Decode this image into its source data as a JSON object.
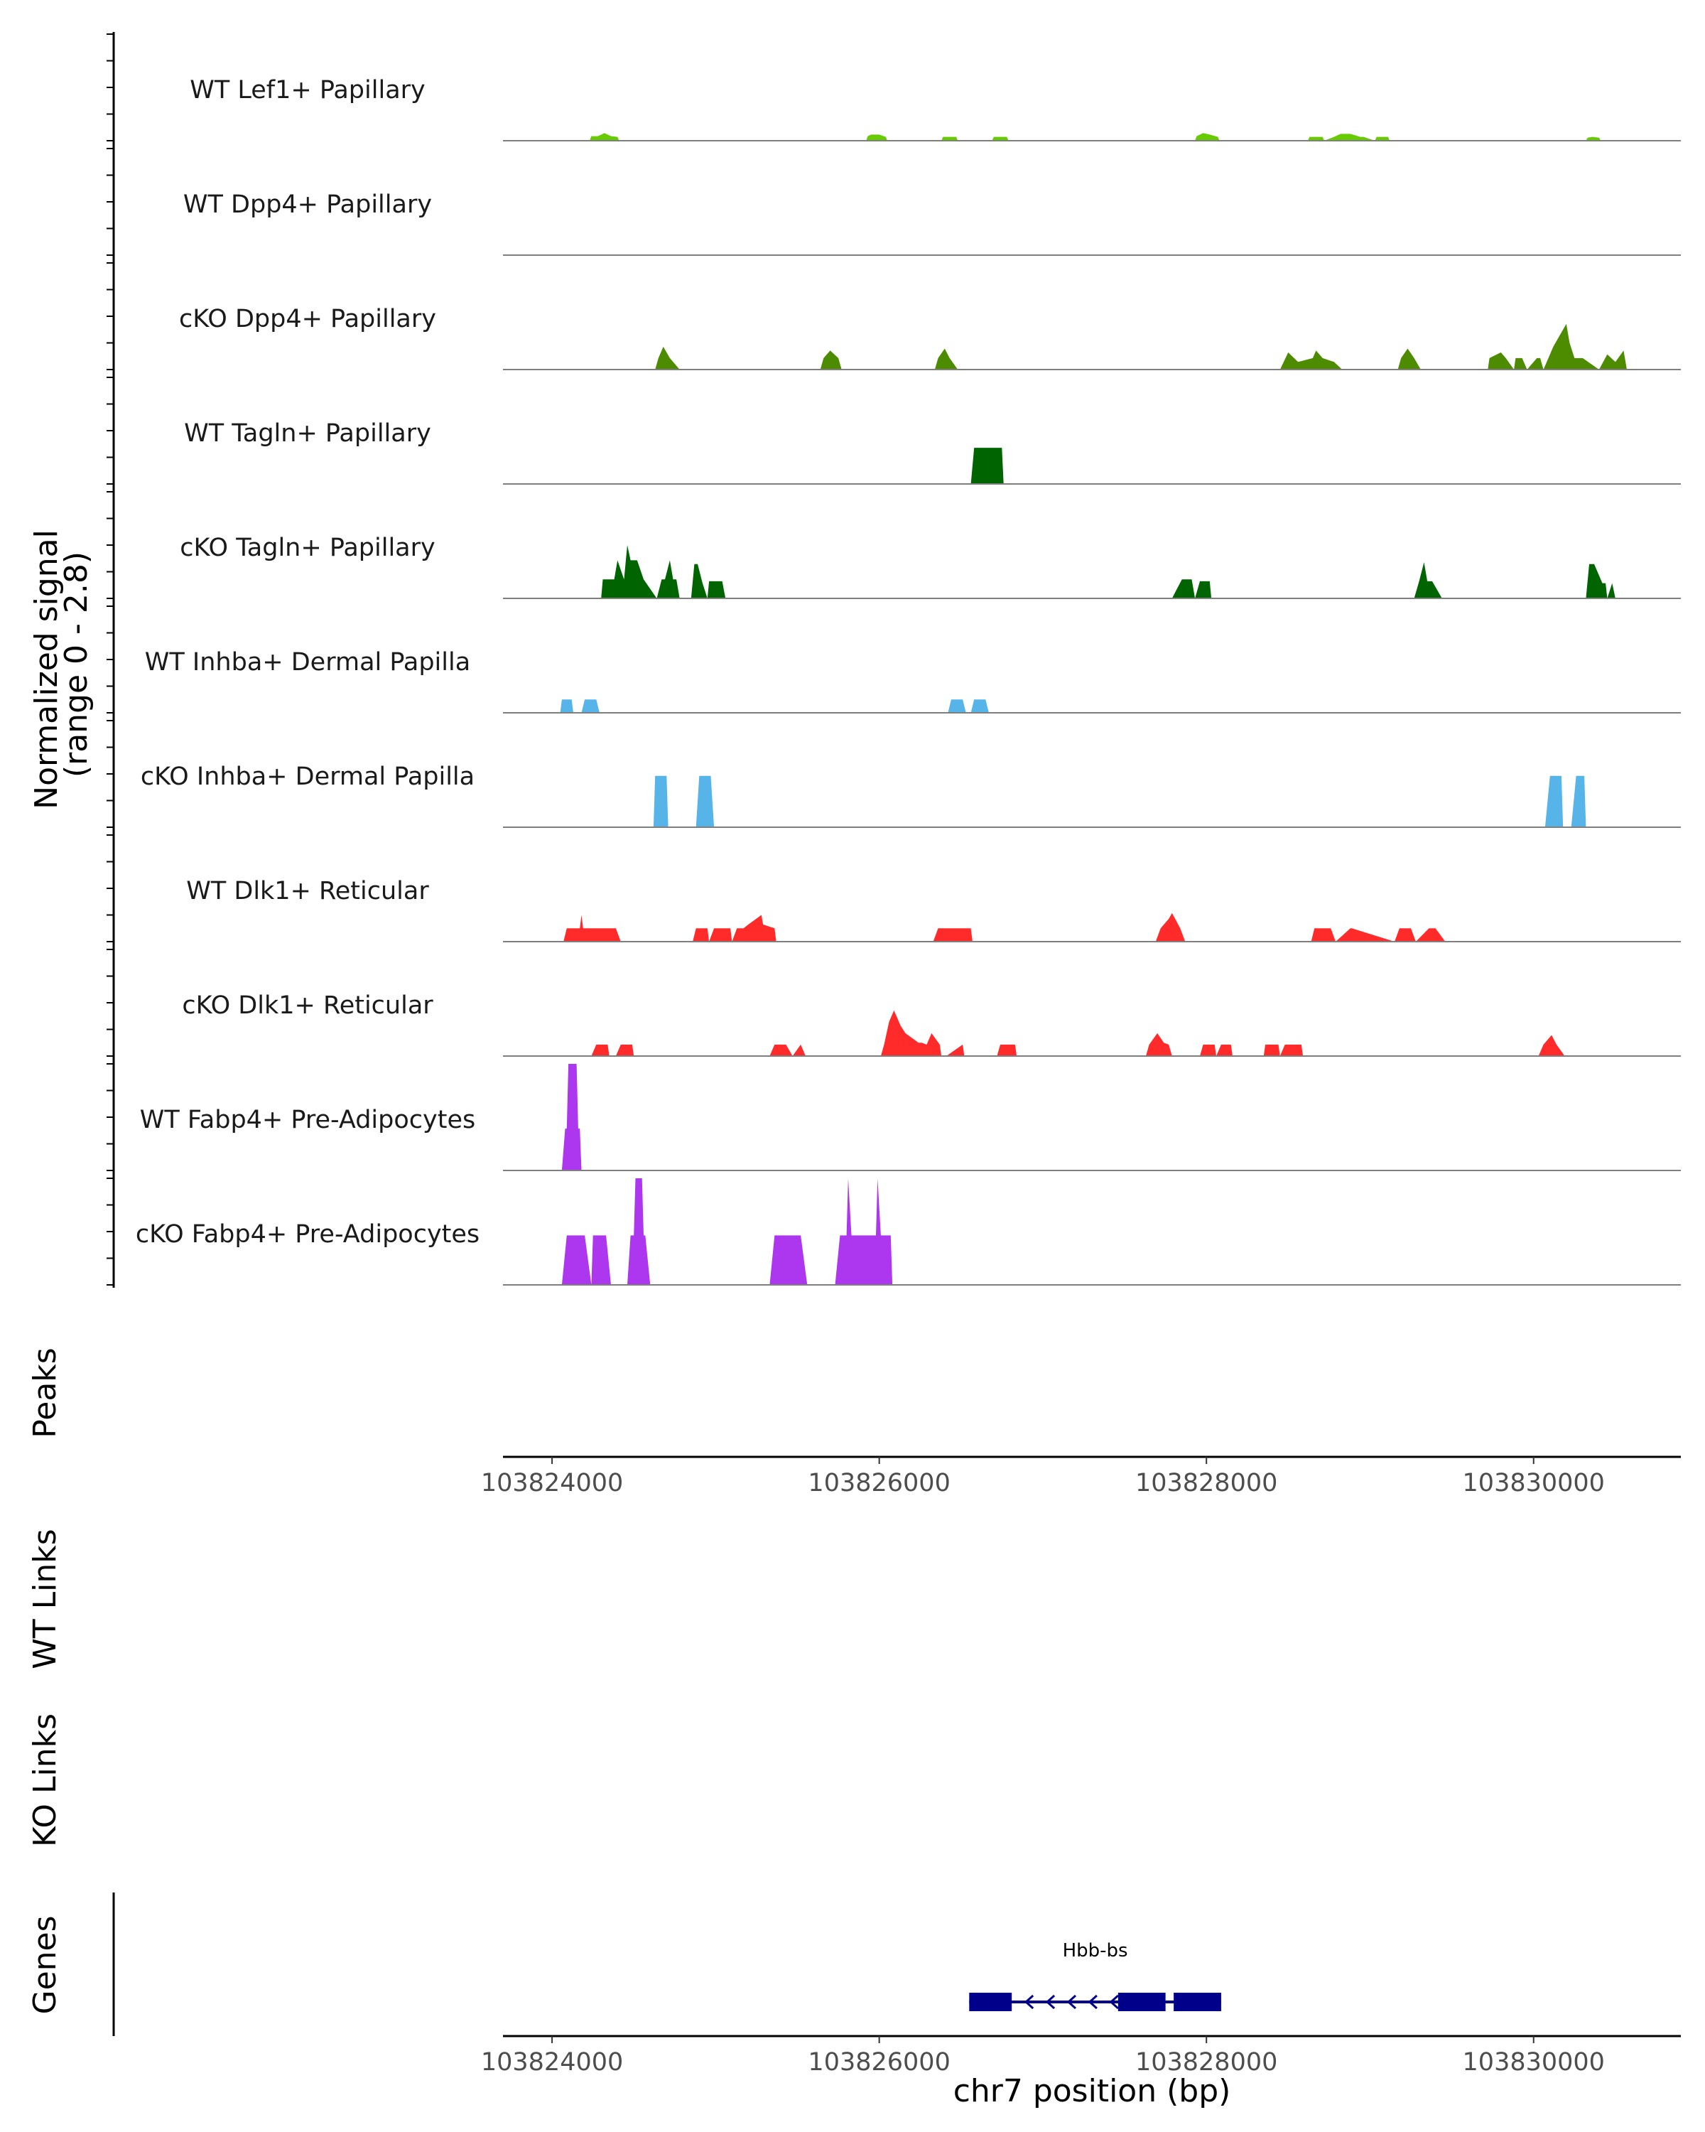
{
  "chart_data": {
    "type": "area",
    "title": "",
    "coverage": {
      "ylabel_line1": "Normalized signal",
      "ylabel_line2": "(range 0 - 2.8)",
      "ylim": [
        0,
        2.8
      ],
      "tracks": [
        {
          "name": "WT Lef1+ Papillary",
          "color": "#66cc00",
          "x": [
            103824230,
            103824240,
            103824280,
            103824320,
            103824360,
            103824400,
            103824410,
            103825920,
            103825930,
            103825950,
            103826000,
            103826040,
            103826050,
            103826380,
            103826390,
            103826470,
            103826480,
            103826690,
            103826700,
            103826780,
            103826790,
            103827930,
            103827940,
            103827980,
            103828020,
            103828070,
            103828080,
            103828620,
            103828630,
            103828710,
            103828720,
            103828780,
            103828820,
            103828880,
            103828940,
            103828960,
            103829030,
            103829040,
            103829110,
            103829120,
            103830320,
            103830330,
            103830360,
            103830400,
            103830410
          ],
          "y": [
            0,
            0.12,
            0.12,
            0.2,
            0.12,
            0.1,
            0,
            0,
            0.12,
            0.16,
            0.16,
            0.1,
            0,
            0,
            0.1,
            0.1,
            0,
            0,
            0.1,
            0.1,
            0,
            0,
            0.12,
            0.2,
            0.16,
            0.1,
            0,
            0,
            0.1,
            0.1,
            0,
            0.1,
            0.18,
            0.18,
            0.1,
            0.1,
            0,
            0.1,
            0.1,
            0,
            0,
            0.08,
            0.1,
            0.08,
            0
          ]
        },
        {
          "name": "WT Dpp4+ Papillary",
          "color": "#66cc00",
          "x": [],
          "y": []
        },
        {
          "name": "cKO Dpp4+ Papillary",
          "color": "#4d8c00",
          "x": [
            103824630,
            103824650,
            103824680,
            103824720,
            103824780,
            103825640,
            103825660,
            103825700,
            103825750,
            103825770,
            103826340,
            103826360,
            103826400,
            103826430,
            103826480,
            103828450,
            103828500,
            103828560,
            103828650,
            103828670,
            103828710,
            103828780,
            103828830,
            103829170,
            103829190,
            103829230,
            103829270,
            103829310,
            103829720,
            103829730,
            103829800,
            103829830,
            103829880,
            103829890,
            103829930,
            103829960,
            103830020,
            103830040,
            103830060,
            103830100,
            103830120,
            103830160,
            103830200,
            103830220,
            103830250,
            103830300,
            103830400,
            103830450,
            103830500,
            103830550,
            103830570
          ],
          "y": [
            0,
            0.3,
            0.6,
            0.3,
            0,
            0,
            0.3,
            0.5,
            0.3,
            0,
            0,
            0.3,
            0.55,
            0.3,
            0,
            0,
            0.45,
            0.2,
            0.3,
            0.5,
            0.3,
            0.2,
            0,
            0,
            0.3,
            0.55,
            0.3,
            0,
            0,
            0.3,
            0.45,
            0.3,
            0,
            0.3,
            0.3,
            0,
            0.3,
            0.3,
            0,
            0.4,
            0.6,
            0.9,
            1.2,
            0.7,
            0.3,
            0.3,
            0,
            0.4,
            0.2,
            0.5,
            0
          ]
        },
        {
          "name": "WT Tagln+ Papillary",
          "color": "#006400",
          "x": [
            103826560,
            103826580,
            103826750,
            103826760
          ],
          "y": [
            0,
            0.95,
            0.95,
            0
          ]
        },
        {
          "name": "cKO Tagln+ Papillary",
          "color": "#006400",
          "x": [
            103824300,
            103824310,
            103824380,
            103824400,
            103824440,
            103824460,
            103824480,
            103824520,
            103824560,
            103824640,
            103824670,
            103824690,
            103824720,
            103824740,
            103824760,
            103824780,
            103824790,
            103824850,
            103824870,
            103824890,
            103824920,
            103824950,
            103824960,
            103825040,
            103825060,
            103825150,
            103825160,
            103827790,
            103827850,
            103827910,
            103827930,
            103827960,
            103828020,
            103828030,
            103829270,
            103829300,
            103829330,
            103829350,
            103829380,
            103829440,
            103830320,
            103830340,
            103830370,
            103830420,
            103830440,
            103830450,
            103830480,
            103830500
          ],
          "y": [
            0,
            0.5,
            0.5,
            1.0,
            0.5,
            1.4,
            1.0,
            1.0,
            0.5,
            0,
            0.5,
            0.5,
            1.0,
            0.5,
            0.5,
            0,
            0,
            0,
            0.9,
            0.9,
            0.4,
            0,
            0.45,
            0.45,
            0,
            0,
            0,
            0,
            0.5,
            0.5,
            0,
            0.45,
            0.45,
            0,
            0,
            0.45,
            0.95,
            0.45,
            0.45,
            0,
            0,
            0.9,
            0.9,
            0.4,
            0.4,
            0,
            0.4,
            0
          ]
        },
        {
          "name": "WT Inhba+ Dermal Papilla",
          "color": "#56b4e9",
          "x": [
            103824050,
            103824060,
            103824120,
            103824130,
            103824180,
            103824200,
            103824270,
            103824290,
            103826420,
            103826440,
            103826510,
            103826530,
            103826560,
            103826580,
            103826650,
            103826670
          ],
          "y": [
            0,
            0.35,
            0.35,
            0,
            0,
            0.35,
            0.35,
            0,
            0,
            0.35,
            0.35,
            0,
            0,
            0.35,
            0.35,
            0
          ]
        },
        {
          "name": "cKO Inhba+ Dermal Papilla",
          "color": "#56b4e9",
          "x": [
            103824620,
            103824630,
            103824700,
            103824710,
            103824880,
            103824900,
            103824970,
            103824990,
            103830070,
            103830100,
            103830170,
            103830180,
            103830230,
            103830260,
            103830310,
            103830320
          ],
          "y": [
            0,
            1.35,
            1.35,
            0,
            0,
            1.35,
            1.35,
            0,
            0,
            1.35,
            1.35,
            0,
            0,
            1.35,
            1.35,
            0
          ]
        },
        {
          "name": "WT Dlk1+ Reticular",
          "color": "#ff2a2a",
          "x": [
            103824070,
            103824090,
            103824170,
            103824180,
            103824190,
            103824390,
            103824420,
            103824860,
            103824880,
            103824950,
            103824960,
            103824990,
            103825090,
            103825100,
            103825130,
            103825170,
            103825200,
            103825280,
            103825290,
            103825360,
            103825370,
            103825410,
            103826330,
            103826360,
            103826560,
            103826570,
            103827690,
            103827720,
            103827770,
            103827790,
            103827840,
            103827870,
            103828640,
            103828660,
            103828760,
            103828790,
            103828880,
            103828890,
            103829150,
            103829180,
            103829250,
            103829280,
            103829360,
            103829400,
            103829460,
            103829470
          ],
          "y": [
            0,
            0.35,
            0.35,
            0.7,
            0.35,
            0.35,
            0,
            0,
            0.35,
            0.35,
            0,
            0.35,
            0.35,
            0,
            0.35,
            0.35,
            0.45,
            0.7,
            0.45,
            0.35,
            0,
            0,
            0,
            0.35,
            0.35,
            0,
            0,
            0.35,
            0.6,
            0.75,
            0.35,
            0,
            0,
            0.35,
            0.35,
            0,
            0.35,
            0.35,
            0,
            0.35,
            0.35,
            0,
            0.35,
            0.35,
            0,
            0
          ]
        },
        {
          "name": "cKO Dlk1+ Reticular",
          "color": "#ff2a2a",
          "x": [
            103824240,
            103824270,
            103824340,
            103824350,
            103824390,
            103824420,
            103824490,
            103824500,
            103825330,
            103825360,
            103825430,
            103825470,
            103825520,
            103825550,
            103826010,
            103826030,
            103826060,
            103826090,
            103826130,
            103826160,
            103826240,
            103826260,
            103826290,
            103826320,
            103826370,
            103826380,
            103826410,
            103826510,
            103826520,
            103826720,
            103826740,
            103826830,
            103826840,
            103827630,
            103827650,
            103827700,
            103827740,
            103827770,
            103827790,
            103827960,
            103827980,
            103828050,
            103828060,
            103828090,
            103828150,
            103828160,
            103828350,
            103828360,
            103828440,
            103828450,
            103828480,
            103828580,
            103828590,
            103830030,
            103830060,
            103830110,
            103830140,
            103830190
          ],
          "y": [
            0,
            0.3,
            0.3,
            0,
            0,
            0.3,
            0.3,
            0,
            0,
            0.3,
            0.3,
            0,
            0.3,
            0,
            0,
            0.3,
            0.9,
            1.2,
            0.8,
            0.6,
            0.35,
            0.35,
            0.3,
            0.6,
            0.3,
            0,
            0,
            0.3,
            0,
            0,
            0.3,
            0.3,
            0,
            0,
            0.3,
            0.6,
            0.35,
            0.3,
            0,
            0,
            0.3,
            0.3,
            0,
            0.3,
            0.3,
            0,
            0,
            0.3,
            0.3,
            0,
            0.3,
            0.3,
            0,
            0,
            0.3,
            0.55,
            0.3,
            0
          ]
        },
        {
          "name": "WT Fabp4+ Pre-Adipocytes",
          "color": "#ad36ef",
          "x": [
            103824060,
            103824080,
            103824090,
            103824100,
            103824150,
            103824160,
            103824170,
            103824180
          ],
          "y": [
            0,
            1.1,
            1.1,
            2.8,
            2.8,
            1.1,
            1.1,
            0
          ]
        },
        {
          "name": "cKO Fabp4+ Pre-Adipocytes",
          "color": "#ad36ef",
          "x": [
            103824060,
            103824090,
            103824200,
            103824240,
            103824250,
            103824330,
            103824360,
            103824460,
            103824480,
            103824500,
            103824510,
            103824550,
            103824560,
            103824570,
            103824600,
            103825330,
            103825360,
            103825520,
            103825560,
            103825730,
            103825760,
            103825800,
            103825810,
            103825830,
            103825840,
            103825980,
            103825990,
            103826010,
            103826020,
            103826070,
            103826080
          ],
          "y": [
            0,
            1.3,
            1.3,
            0,
            1.3,
            1.3,
            0,
            0,
            1.3,
            1.3,
            2.8,
            2.8,
            1.3,
            1.3,
            0,
            0,
            1.3,
            1.3,
            0,
            0,
            1.3,
            1.3,
            2.8,
            1.3,
            1.3,
            1.3,
            2.8,
            1.3,
            1.3,
            1.3,
            0
          ]
        }
      ]
    },
    "peaks": {
      "label": "Peaks",
      "ranges": []
    },
    "wt_links": {
      "label": "WT Links",
      "links": []
    },
    "ko_links": {
      "label": "KO Links",
      "links": []
    },
    "genes": {
      "label": "Genes",
      "items": [
        {
          "name": "Hbb-bs",
          "start": 103826550,
          "end": 103828090,
          "strand": "-",
          "exons": [
            [
              103826550,
              103826810
            ],
            [
              103827460,
              103827750
            ],
            [
              103827800,
              103828090
            ]
          ],
          "color": "#00008b"
        }
      ]
    },
    "xaxis": {
      "xlim": [
        103823700,
        103830900
      ],
      "ticks": [
        103824000,
        103826000,
        103828000,
        103830000
      ],
      "tick_labels": [
        "103824000",
        "103826000",
        "103828000",
        "103830000"
      ],
      "xlabel": "chr7 position (bp)"
    }
  }
}
